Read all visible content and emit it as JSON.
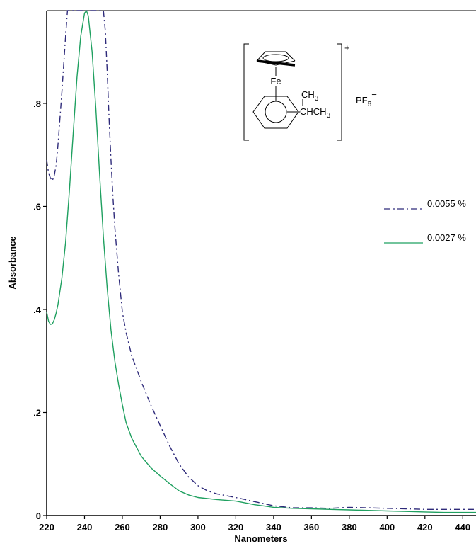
{
  "chart_data": {
    "type": "line",
    "title": "",
    "xlabel": "Nanometers",
    "ylabel": "Absorbance",
    "xlim": [
      220,
      447
    ],
    "ylim": [
      0,
      0.98
    ],
    "grid": false,
    "legend_position": "right",
    "x_ticks": [
      220,
      240,
      260,
      280,
      300,
      320,
      340,
      360,
      380,
      400,
      420,
      440
    ],
    "x_tick_labels": [
      "220",
      "240",
      "260",
      "280",
      "300",
      "320",
      "340",
      "360",
      "380",
      "400",
      "420",
      "440"
    ],
    "y_ticks": [
      0,
      0.2,
      0.4,
      0.6,
      0.8
    ],
    "y_tick_labels": [
      "0",
      ".2",
      ".4",
      ".6",
      ".8"
    ],
    "series": [
      {
        "name": "0.0055 %",
        "color": "#2e2a7a",
        "dash": "dash-dot",
        "x": [
          220,
          221,
          222,
          223,
          224,
          225,
          226,
          228,
          230,
          231,
          232,
          233,
          235,
          240,
          245,
          249,
          250,
          251,
          252,
          253,
          254,
          255,
          256,
          258,
          260,
          262,
          265,
          270,
          275,
          280,
          285,
          290,
          295,
          300,
          305,
          310,
          320,
          330,
          340,
          350,
          360,
          370,
          380,
          390,
          400,
          410,
          420,
          430,
          440,
          447
        ],
        "y": [
          0.69,
          0.665,
          0.655,
          0.65,
          0.66,
          0.68,
          0.72,
          0.82,
          0.93,
          0.98,
          0.98,
          0.98,
          0.98,
          0.98,
          0.98,
          0.98,
          0.98,
          0.94,
          0.86,
          0.77,
          0.69,
          0.62,
          0.56,
          0.47,
          0.395,
          0.355,
          0.31,
          0.26,
          0.215,
          0.175,
          0.135,
          0.1,
          0.075,
          0.058,
          0.048,
          0.042,
          0.035,
          0.027,
          0.019,
          0.015,
          0.015,
          0.014,
          0.016,
          0.015,
          0.014,
          0.013,
          0.012,
          0.012,
          0.012,
          0.012
        ]
      },
      {
        "name": "0.0027 %",
        "color": "#1fa060",
        "dash": "solid",
        "x": [
          220,
          221,
          222,
          223,
          224,
          225,
          226,
          228,
          230,
          232,
          234,
          236,
          238,
          240,
          241,
          242,
          244,
          246,
          248,
          250,
          252,
          254,
          256,
          258,
          260,
          262,
          265,
          270,
          275,
          280,
          285,
          290,
          295,
          300,
          310,
          320,
          330,
          340,
          350,
          360,
          370,
          380,
          390,
          400,
          410,
          420,
          430,
          440,
          447
        ],
        "y": [
          0.395,
          0.377,
          0.371,
          0.372,
          0.38,
          0.393,
          0.41,
          0.46,
          0.53,
          0.63,
          0.74,
          0.85,
          0.93,
          0.975,
          0.98,
          0.97,
          0.9,
          0.79,
          0.66,
          0.54,
          0.44,
          0.36,
          0.3,
          0.255,
          0.215,
          0.18,
          0.15,
          0.115,
          0.093,
          0.077,
          0.062,
          0.048,
          0.04,
          0.035,
          0.031,
          0.028,
          0.021,
          0.016,
          0.014,
          0.013,
          0.012,
          0.011,
          0.01,
          0.009,
          0.008,
          0.007,
          0.006,
          0.006,
          0.006
        ]
      }
    ]
  },
  "structure": {
    "fe_label": "Fe",
    "ch3_top_main": "CH",
    "ch3_top_sub": "3",
    "chch3_main": "CHCH",
    "chch3_sub": "3",
    "charge": "+",
    "counterion_main": "PF",
    "counterion_sub": "6",
    "counterion_charge": "−"
  }
}
